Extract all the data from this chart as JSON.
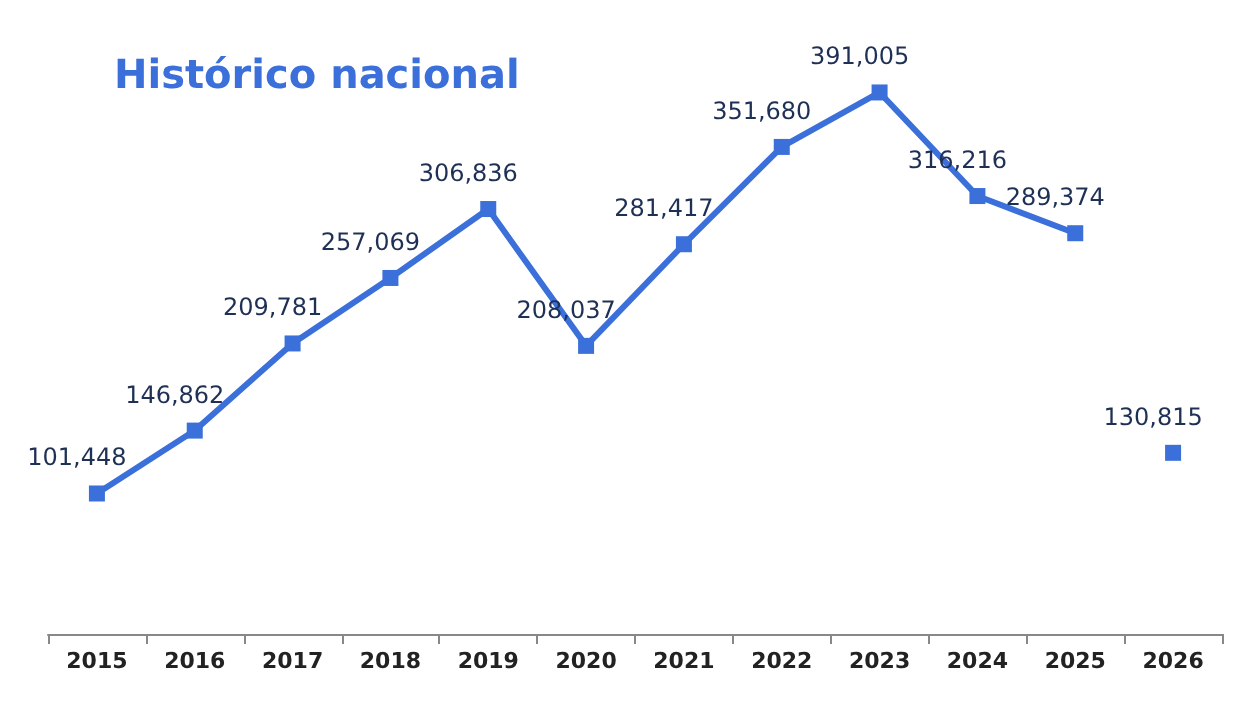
{
  "chart_data": {
    "type": "line",
    "title": "Histórico nacional",
    "categories": [
      "2015",
      "2016",
      "2017",
      "2018",
      "2019",
      "2020",
      "2021",
      "2022",
      "2023",
      "2024",
      "2025",
      "2026"
    ],
    "series": [
      {
        "type": "line",
        "color": "#3b6fd9",
        "values": [
          101448,
          146862,
          209781,
          257069,
          306836,
          208037,
          281417,
          351680,
          391005,
          316216,
          289374,
          null
        ],
        "value_labels": [
          "101,448",
          "146,862",
          "209,781",
          "257,069",
          "306,836",
          "208,037",
          "281,417",
          "351,680",
          "391,005",
          "316,216",
          "289,374",
          null
        ]
      },
      {
        "type": "scatter",
        "color": "#3b6fd9",
        "values": [
          null,
          null,
          null,
          null,
          null,
          null,
          null,
          null,
          null,
          null,
          null,
          130815
        ],
        "value_labels": [
          null,
          null,
          null,
          null,
          null,
          null,
          null,
          null,
          null,
          null,
          null,
          "130,815"
        ]
      }
    ],
    "marker": "square",
    "grid": false,
    "tick_labels": "x"
  }
}
